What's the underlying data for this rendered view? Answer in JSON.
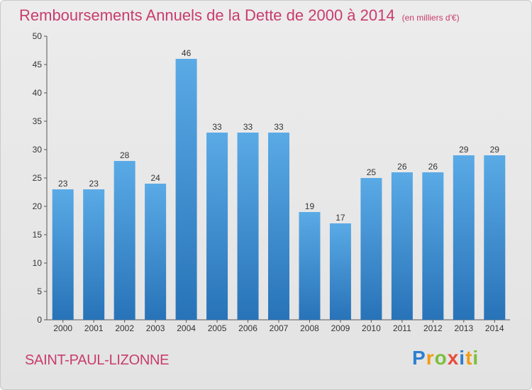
{
  "title": "Remboursements Annuels de la Dette de 2000 à 2014",
  "unit_note": "(en milliers d'€)",
  "commune": "SAINT-PAUL-LIZONNE",
  "brand": {
    "letters": [
      "P",
      "r",
      "o",
      "x",
      "i",
      "t",
      "i"
    ],
    "colors": [
      "#2e7fd1",
      "#f39c12",
      "#7cbf3a",
      "#e74c3c",
      "#2e7fd1",
      "#f39c12",
      "#7cbf3a"
    ]
  },
  "colors": {
    "bar_top": "#5aaae6",
    "bar_bottom": "#2873b8",
    "title": "#c83c6e"
  },
  "chart_data": {
    "type": "bar",
    "title": "Remboursements Annuels de la Dette de 2000 à 2014",
    "ylabel": "",
    "xlabel": "",
    "categories": [
      "2000",
      "2001",
      "2002",
      "2003",
      "2004",
      "2005",
      "2006",
      "2007",
      "2008",
      "2009",
      "2010",
      "2011",
      "2012",
      "2013",
      "2014"
    ],
    "values": [
      23,
      23,
      28,
      24,
      46,
      33,
      33,
      33,
      19,
      17,
      25,
      26,
      26,
      29,
      29
    ],
    "ylim": [
      0,
      50
    ],
    "yticks": [
      0,
      5,
      10,
      15,
      20,
      25,
      30,
      35,
      40,
      45,
      50
    ],
    "grid": false,
    "data_labels": true
  }
}
